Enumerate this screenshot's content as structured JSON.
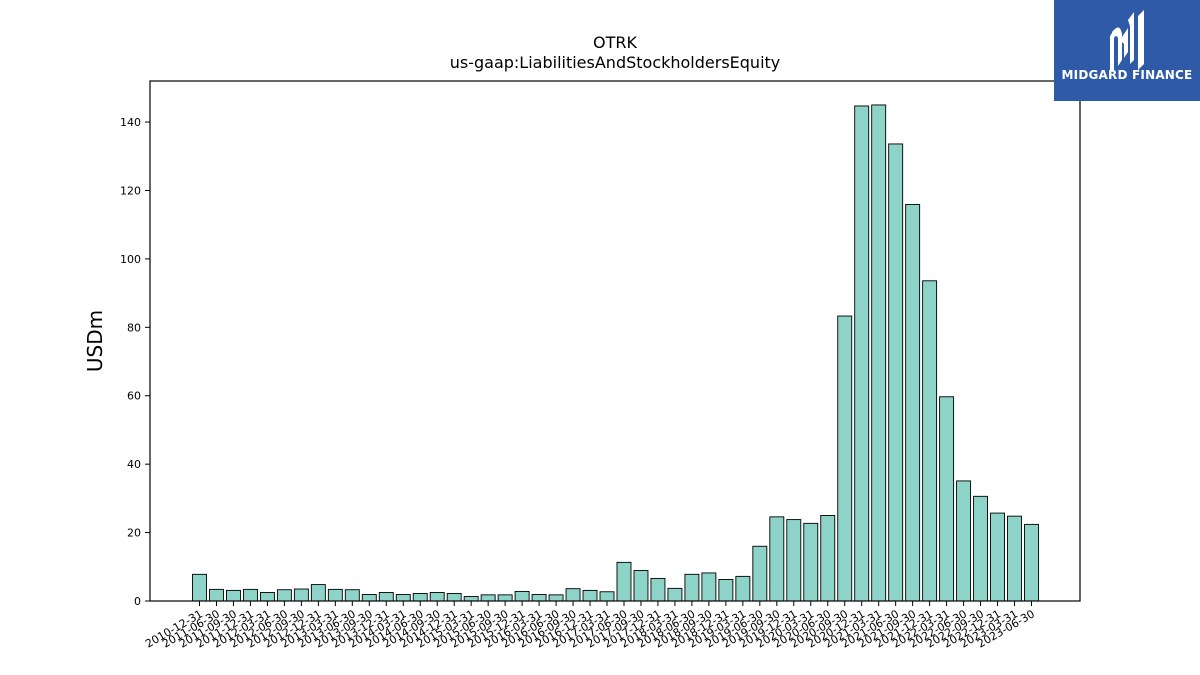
{
  "chart_data": {
    "type": "bar",
    "title": "OTRK",
    "subtitle": "us-gaap:LiabilitiesAndStockholdersEquity",
    "xlabel": "",
    "ylabel": "USDm",
    "ylim": [
      0,
      152
    ],
    "yticks": [
      0,
      20,
      40,
      60,
      80,
      100,
      120,
      140
    ],
    "grid": false,
    "bar_color": "#8dd3c7",
    "categories": [
      "2010-12-31",
      "2011-06-30",
      "2011-09-30",
      "2011-12-31",
      "2012-03-31",
      "2012-06-30",
      "2012-09-30",
      "2012-12-31",
      "2013-03-31",
      "2013-06-30",
      "2013-09-30",
      "2013-12-31",
      "2014-03-31",
      "2014-06-30",
      "2014-09-30",
      "2014-12-31",
      "2015-03-31",
      "2015-06-30",
      "2015-09-30",
      "2015-12-31",
      "2016-03-31",
      "2016-06-30",
      "2016-09-30",
      "2016-12-31",
      "2017-03-31",
      "2017-06-30",
      "2017-09-30",
      "2017-12-31",
      "2018-03-31",
      "2018-06-30",
      "2018-09-30",
      "2018-12-31",
      "2019-03-31",
      "2019-06-30",
      "2019-09-30",
      "2019-12-31",
      "2020-03-31",
      "2020-06-30",
      "2020-09-30",
      "2020-12-31",
      "2021-03-31",
      "2021-06-30",
      "2021-09-30",
      "2021-12-31",
      "2022-03-31",
      "2022-06-30",
      "2022-09-30",
      "2022-12-31",
      "2023-03-31",
      "2023-06-30"
    ],
    "values": [
      7.8,
      3.4,
      3.1,
      3.4,
      2.5,
      3.3,
      3.5,
      4.8,
      3.4,
      3.3,
      1.9,
      2.5,
      1.9,
      2.2,
      2.5,
      2.2,
      1.3,
      1.8,
      1.8,
      2.8,
      1.9,
      1.8,
      3.6,
      3.1,
      2.7,
      11.3,
      8.9,
      6.6,
      3.7,
      7.8,
      8.2,
      6.3,
      7.2,
      16.0,
      24.6,
      23.8,
      22.7,
      25.0,
      83.3,
      144.7,
      145.0,
      133.6,
      115.9,
      93.6,
      59.7,
      35.1,
      30.6,
      25.7,
      24.8,
      22.4
    ]
  },
  "logo": {
    "text": "MIDGARD FINANCE",
    "icon": "midgard-logo-icon",
    "background": "#2f5aa8"
  }
}
